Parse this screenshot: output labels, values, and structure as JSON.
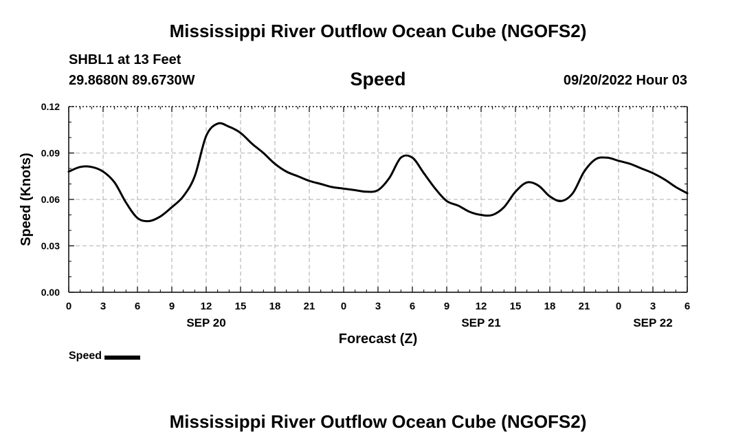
{
  "header": {
    "title": "Mississippi River Outflow Ocean Cube (NGOFS2)",
    "station": "SHBL1 at 13 Feet",
    "coordinates": "29.8680N  89.6730W",
    "variable": "Speed",
    "datetime": "09/20/2022 Hour 03"
  },
  "footer": {
    "title": "Mississippi River Outflow Ocean Cube (NGOFS2)"
  },
  "legend": {
    "label": "Speed"
  },
  "chart_data": {
    "type": "line",
    "title": "Speed",
    "xlabel": "Forecast (Z)",
    "ylabel": "Speed (Knots)",
    "ylim": [
      0,
      0.12
    ],
    "xlim_hours": [
      0,
      54
    ],
    "grid": true,
    "legend_position": "bottom-left",
    "y_ticks": [
      "0.00",
      "0.03",
      "0.06",
      "0.09",
      "0.12"
    ],
    "x_ticks": [
      "0",
      "3",
      "6",
      "9",
      "12",
      "15",
      "18",
      "21",
      "0",
      "3",
      "6",
      "9",
      "12",
      "15",
      "18",
      "21",
      "0",
      "3",
      "6"
    ],
    "date_labels": [
      {
        "label": "SEP 20",
        "hour": 12
      },
      {
        "label": "SEP 21",
        "hour": 36
      },
      {
        "label": "SEP 22",
        "hour": 51
      }
    ],
    "series": [
      {
        "name": "Speed",
        "color": "#000000",
        "x": [
          0,
          1,
          2,
          3,
          4,
          5,
          6,
          7,
          8,
          9,
          10,
          11,
          12,
          13,
          14,
          15,
          16,
          17,
          18,
          19,
          20,
          21,
          22,
          23,
          24,
          25,
          26,
          27,
          28,
          29,
          30,
          31,
          32,
          33,
          34,
          35,
          36,
          37,
          38,
          39,
          40,
          41,
          42,
          43,
          44,
          45,
          46,
          47,
          48,
          49,
          50,
          51,
          52,
          53,
          54
        ],
        "y": [
          0.078,
          0.081,
          0.081,
          0.078,
          0.071,
          0.058,
          0.048,
          0.046,
          0.049,
          0.055,
          0.062,
          0.075,
          0.101,
          0.109,
          0.107,
          0.103,
          0.096,
          0.09,
          0.083,
          0.078,
          0.075,
          0.072,
          0.07,
          0.068,
          0.067,
          0.066,
          0.065,
          0.066,
          0.074,
          0.087,
          0.087,
          0.077,
          0.067,
          0.059,
          0.056,
          0.052,
          0.05,
          0.05,
          0.055,
          0.065,
          0.071,
          0.069,
          0.062,
          0.059,
          0.064,
          0.078,
          0.086,
          0.087,
          0.085,
          0.083,
          0.08,
          0.077,
          0.073,
          0.068,
          0.064
        ]
      }
    ]
  }
}
